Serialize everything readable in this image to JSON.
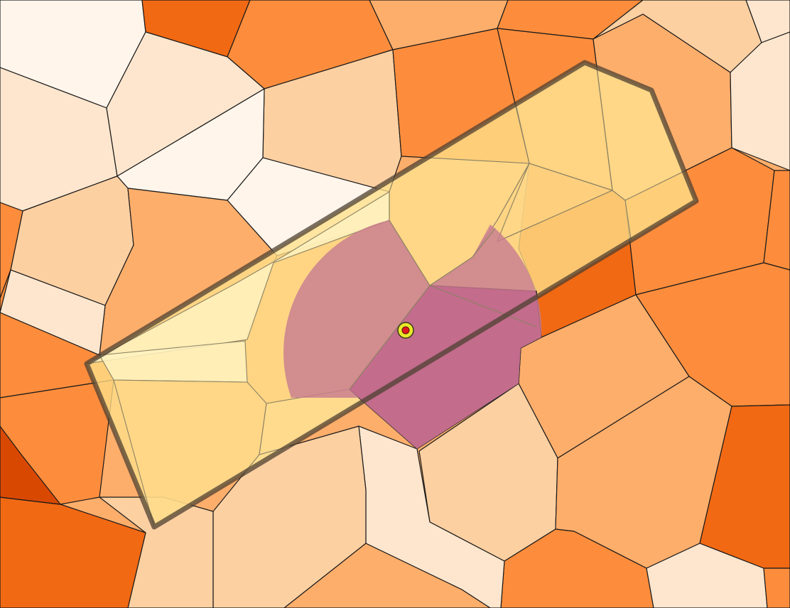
{
  "map": {
    "layers": [
      {
        "name": "voronoi-cells",
        "fill_scale": [
          "#fff5eb",
          "#fee6ce",
          "#fdd0a2",
          "#fdae6b",
          "#fd8d3c",
          "#f16913",
          "#d94801"
        ]
      },
      {
        "name": "rectangular-buffer",
        "fill": "#ffe79a",
        "outline": "#4d4032"
      },
      {
        "name": "circle-buffer",
        "fill": "#c87c90"
      },
      {
        "name": "selected-cell",
        "fill": "#ab2278"
      },
      {
        "name": "query-point",
        "fill": "#e8e82a",
        "center": "#e0181c"
      }
    ]
  }
}
